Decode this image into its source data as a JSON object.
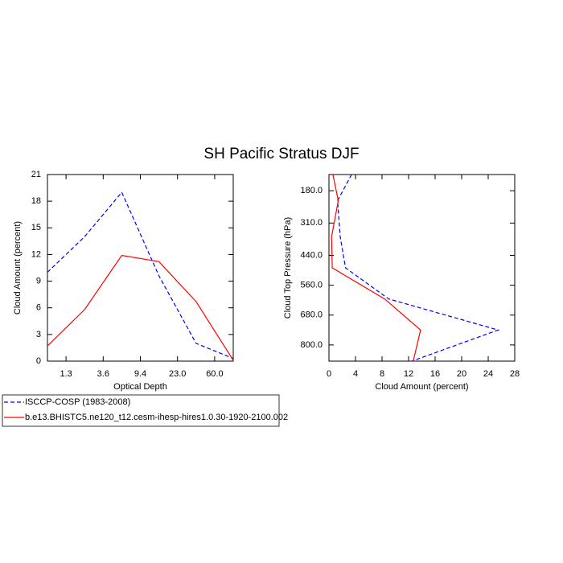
{
  "chart_data": [
    {
      "type": "line",
      "title": "SH Pacific Stratus DJF",
      "x_label": "Optical Depth",
      "y_label": "Cloud Amount (percent)",
      "x": [
        0,
        1,
        2,
        3,
        4,
        5
      ],
      "xlim": [
        0,
        5
      ],
      "xticks": [
        {
          "value": 0.5,
          "label": "1.3"
        },
        {
          "value": 1.5,
          "label": "3.6"
        },
        {
          "value": 2.5,
          "label": "9.4"
        },
        {
          "value": 3.5,
          "label": "23.0"
        },
        {
          "value": 4.5,
          "label": "60.0"
        }
      ],
      "ylim": [
        0,
        21
      ],
      "yticks": [
        0,
        3,
        6,
        9,
        12,
        15,
        18,
        21
      ],
      "series": [
        {
          "name": "ISCCP-COSP (1983-2008)",
          "color": "#0000ff",
          "line_style": "dashed",
          "values": [
            10,
            14,
            19,
            9.6,
            2.0,
            0.3
          ]
        },
        {
          "name": "b.e13.BHISTC5.ne120_t12.cesm-ihesp-hires1.0.30-1920-2100.002",
          "color": "#ff0000",
          "line_style": "solid",
          "values": [
            1.7,
            5.8,
            11.9,
            11.2,
            6.7,
            0.1
          ]
        }
      ]
    },
    {
      "type": "line",
      "x_label": "Cloud Amount (percent)",
      "y_label": "Cloud Top Pressure (hPa)",
      "xlim": [
        0,
        28
      ],
      "xticks": [
        0,
        4,
        8,
        12,
        16,
        20,
        24,
        28
      ],
      "y": [
        115,
        220,
        365,
        490,
        615,
        740,
        865
      ],
      "ylim": [
        115,
        865
      ],
      "y_reversed": true,
      "yticks": [
        {
          "value": 180,
          "label": "180.0"
        },
        {
          "value": 310,
          "label": "310.0"
        },
        {
          "value": 440,
          "label": "440.0"
        },
        {
          "value": 560,
          "label": "560.0"
        },
        {
          "value": 680,
          "label": "680.0"
        },
        {
          "value": 800,
          "label": "800.0"
        }
      ],
      "series": [
        {
          "color": "#0000ff",
          "line_style": "dashed",
          "values": [
            3.4,
            1.3,
            1.7,
            2.5,
            9.0,
            25.5,
            12.5
          ]
        },
        {
          "color": "#ff0000",
          "line_style": "solid",
          "values": [
            0.6,
            1.4,
            0.4,
            0.5,
            8.4,
            13.8,
            12.7
          ]
        }
      ]
    }
  ]
}
